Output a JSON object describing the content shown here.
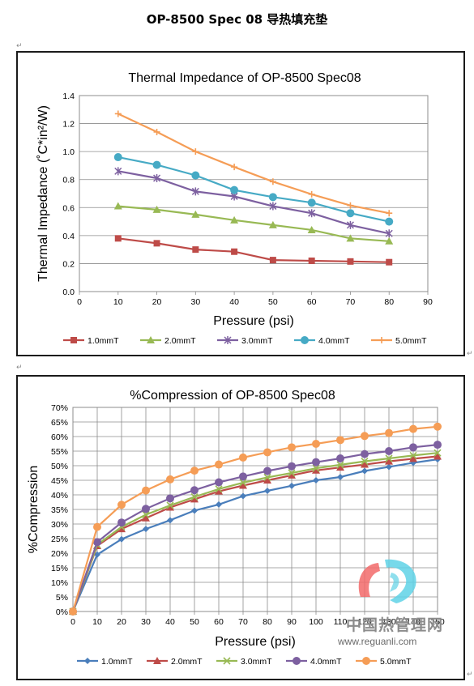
{
  "document": {
    "title": "OP-8500 Spec 08 导热填充垫",
    "paragraph_mark": "↵"
  },
  "watermark": {
    "text_cn": "中国热管理网",
    "url": "www.reguanli.com"
  },
  "colors": {
    "1.0mmT": "#be4b48",
    "2.0mmT": "#98b954",
    "3.0mmT": "#7d60a0",
    "4.0mmT": "#46aac5",
    "5.0mmT": "#f59d56",
    "c2_1.0mmT": "#4a7ebb",
    "c2_2.0mmT": "#be4b48",
    "c2_3.0mmT": "#98b954",
    "c2_4.0mmT": "#7d60a0",
    "c2_5.0mmT": "#f59d56"
  },
  "chart_data": [
    {
      "type": "line",
      "title": "Thermal Impedance of OP-8500 Spec08",
      "xlabel": "Pressure (psi)",
      "ylabel": "Thermal Impedance (˚C*in²/W)",
      "xlim": [
        0,
        90
      ],
      "ylim": [
        0,
        1.4
      ],
      "x_ticks": [
        "0",
        "10",
        "20",
        "30",
        "40",
        "50",
        "60",
        "70",
        "80",
        "90"
      ],
      "y_ticks": [
        "0.0",
        "0.2",
        "0.4",
        "0.6",
        "0.8",
        "1.0",
        "1.2",
        "1.4"
      ],
      "grid": "horizontal",
      "legend": "bottom",
      "x": [
        10,
        20,
        30,
        40,
        50,
        60,
        70,
        80
      ],
      "series": [
        {
          "name": "1.0mmT",
          "marker": "square",
          "values": [
            0.38,
            0.345,
            0.3,
            0.285,
            0.225,
            0.22,
            0.215,
            0.21
          ]
        },
        {
          "name": "2.0mmT",
          "marker": "triangle",
          "values": [
            0.61,
            0.585,
            0.55,
            0.51,
            0.475,
            0.44,
            0.38,
            0.36
          ]
        },
        {
          "name": "3.0mmT",
          "marker": "star",
          "values": [
            0.86,
            0.81,
            0.715,
            0.68,
            0.61,
            0.56,
            0.475,
            0.415
          ]
        },
        {
          "name": "4.0mmT",
          "marker": "circle",
          "values": [
            0.96,
            0.905,
            0.83,
            0.725,
            0.675,
            0.635,
            0.56,
            0.5
          ]
        },
        {
          "name": "5.0mmT",
          "marker": "plus",
          "values": [
            1.27,
            1.14,
            1.0,
            0.89,
            0.785,
            0.695,
            0.615,
            0.56
          ]
        }
      ]
    },
    {
      "type": "line",
      "title": "%Compression of OP-8500 Spec08",
      "xlabel": "Pressure (psi)",
      "ylabel": "%Compression",
      "xlim": [
        0,
        150
      ],
      "ylim": [
        0,
        70
      ],
      "x_ticks": [
        "0",
        "10",
        "20",
        "30",
        "40",
        "50",
        "60",
        "70",
        "80",
        "90",
        "100",
        "110",
        "120",
        "130",
        "140",
        "150"
      ],
      "y_ticks": [
        "0%",
        "5%",
        "10%",
        "15%",
        "20%",
        "25%",
        "30%",
        "35%",
        "40%",
        "45%",
        "50%",
        "55%",
        "60%",
        "65%",
        "70%"
      ],
      "grid": "both",
      "legend": "bottom",
      "x": [
        0,
        10,
        20,
        30,
        40,
        50,
        60,
        70,
        80,
        90,
        100,
        110,
        120,
        130,
        140,
        150
      ],
      "series": [
        {
          "name": "1.0mmT",
          "marker": "diamond",
          "values": [
            0,
            19.5,
            24.8,
            28.3,
            31.3,
            34.6,
            36.7,
            39.6,
            41.4,
            43.1,
            45.0,
            46.1,
            48.2,
            49.6,
            51.0,
            52.2
          ]
        },
        {
          "name": "2.0mmT",
          "marker": "triangle",
          "values": [
            0,
            22.5,
            28.3,
            32.0,
            35.7,
            38.5,
            41.2,
            43.2,
            45.0,
            46.7,
            48.4,
            49.4,
            50.4,
            51.5,
            52.4,
            53.2
          ]
        },
        {
          "name": "3.0mmT",
          "marker": "x",
          "values": [
            0,
            22.9,
            29.0,
            33.2,
            36.4,
            39.3,
            42.0,
            44.2,
            46.0,
            47.5,
            49.1,
            50.3,
            51.5,
            52.5,
            53.5,
            54.4
          ]
        },
        {
          "name": "4.0mmT",
          "marker": "circle",
          "values": [
            0,
            23.8,
            30.5,
            35.2,
            38.8,
            41.6,
            44.3,
            46.3,
            48.2,
            49.8,
            51.2,
            52.5,
            54.0,
            55.0,
            56.3,
            57.2
          ]
        },
        {
          "name": "5.0mmT",
          "marker": "circle",
          "values": [
            0,
            29.0,
            36.6,
            41.5,
            45.3,
            48.3,
            50.4,
            52.8,
            54.6,
            56.3,
            57.5,
            58.8,
            60.2,
            61.2,
            62.6,
            63.4
          ]
        }
      ]
    }
  ]
}
